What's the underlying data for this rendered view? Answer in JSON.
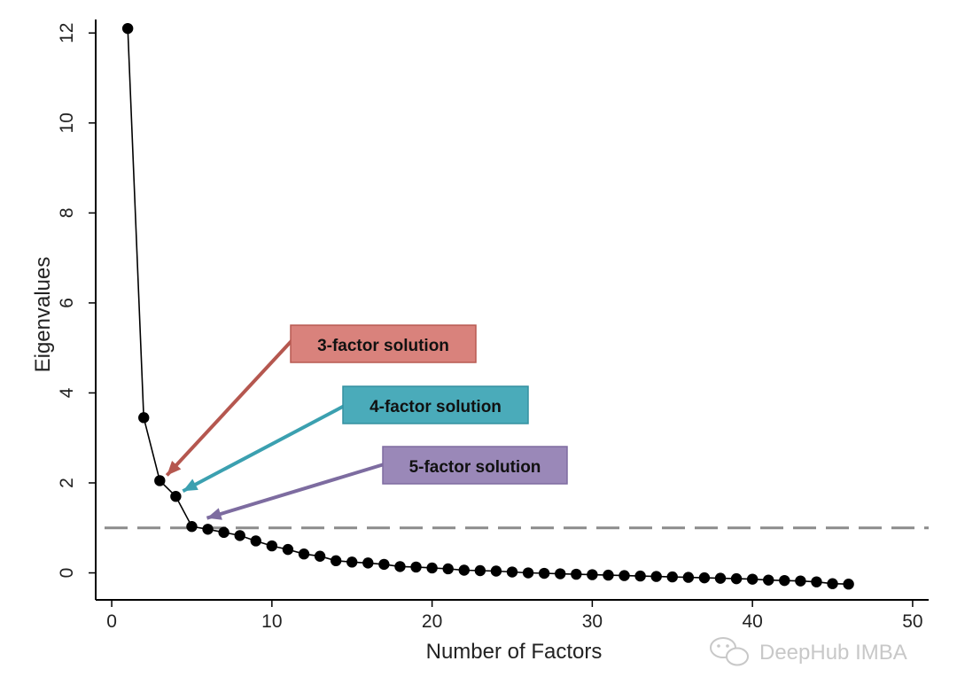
{
  "chart_data": {
    "type": "line",
    "xlabel": "Number of Factors",
    "ylabel": "Eigenvalues",
    "xlim": [
      -1,
      51
    ],
    "ylim": [
      -0.6,
      12.3
    ],
    "xticks": [
      0,
      10,
      20,
      30,
      40,
      50
    ],
    "yticks": [
      0,
      2,
      4,
      6,
      8,
      10,
      12
    ],
    "grid": false,
    "legend": "none",
    "reference_line": {
      "y": 1,
      "style": "dashed",
      "color": "#8c8c8c"
    },
    "series": [
      {
        "color": "#000000",
        "marker": "circle",
        "points": [
          [
            1,
            12.1
          ],
          [
            2,
            3.45
          ],
          [
            3,
            2.05
          ],
          [
            4,
            1.7
          ],
          [
            5,
            1.03
          ],
          [
            6,
            0.97
          ],
          [
            7,
            0.9
          ],
          [
            8,
            0.83
          ],
          [
            9,
            0.71
          ],
          [
            10,
            0.6
          ],
          [
            11,
            0.52
          ],
          [
            12,
            0.42
          ],
          [
            13,
            0.37
          ],
          [
            14,
            0.27
          ],
          [
            15,
            0.24
          ],
          [
            16,
            0.22
          ],
          [
            17,
            0.19
          ],
          [
            18,
            0.14
          ],
          [
            19,
            0.13
          ],
          [
            20,
            0.11
          ],
          [
            21,
            0.09
          ],
          [
            22,
            0.06
          ],
          [
            23,
            0.05
          ],
          [
            24,
            0.04
          ],
          [
            25,
            0.02
          ],
          [
            26,
            0.0
          ],
          [
            27,
            -0.01
          ],
          [
            28,
            -0.02
          ],
          [
            29,
            -0.03
          ],
          [
            30,
            -0.04
          ],
          [
            31,
            -0.05
          ],
          [
            32,
            -0.06
          ],
          [
            33,
            -0.07
          ],
          [
            34,
            -0.08
          ],
          [
            35,
            -0.09
          ],
          [
            36,
            -0.1
          ],
          [
            37,
            -0.11
          ],
          [
            38,
            -0.12
          ],
          [
            39,
            -0.13
          ],
          [
            40,
            -0.14
          ],
          [
            41,
            -0.16
          ],
          [
            42,
            -0.17
          ],
          [
            43,
            -0.18
          ],
          [
            44,
            -0.2
          ],
          [
            45,
            -0.24
          ],
          [
            46,
            -0.25
          ]
        ]
      }
    ],
    "annotations": [
      {
        "text": "3-factor solution",
        "fill": "#d9827c",
        "border": "#b85a52",
        "arrow_color": "#b5574f",
        "target": [
          3,
          2.05
        ]
      },
      {
        "text": "4-factor solution",
        "fill": "#4aabba",
        "border": "#3490a0",
        "arrow_color": "#3ba0b0",
        "target": [
          4,
          1.7
        ]
      },
      {
        "text": "5-factor solution",
        "fill": "#9a88b8",
        "border": "#7e6ba0",
        "arrow_color": "#7d6ca0",
        "target": [
          5.5,
          1.1
        ]
      }
    ]
  },
  "watermark": {
    "text": "DeepHub IMBA",
    "icon": "wechat-icon"
  }
}
